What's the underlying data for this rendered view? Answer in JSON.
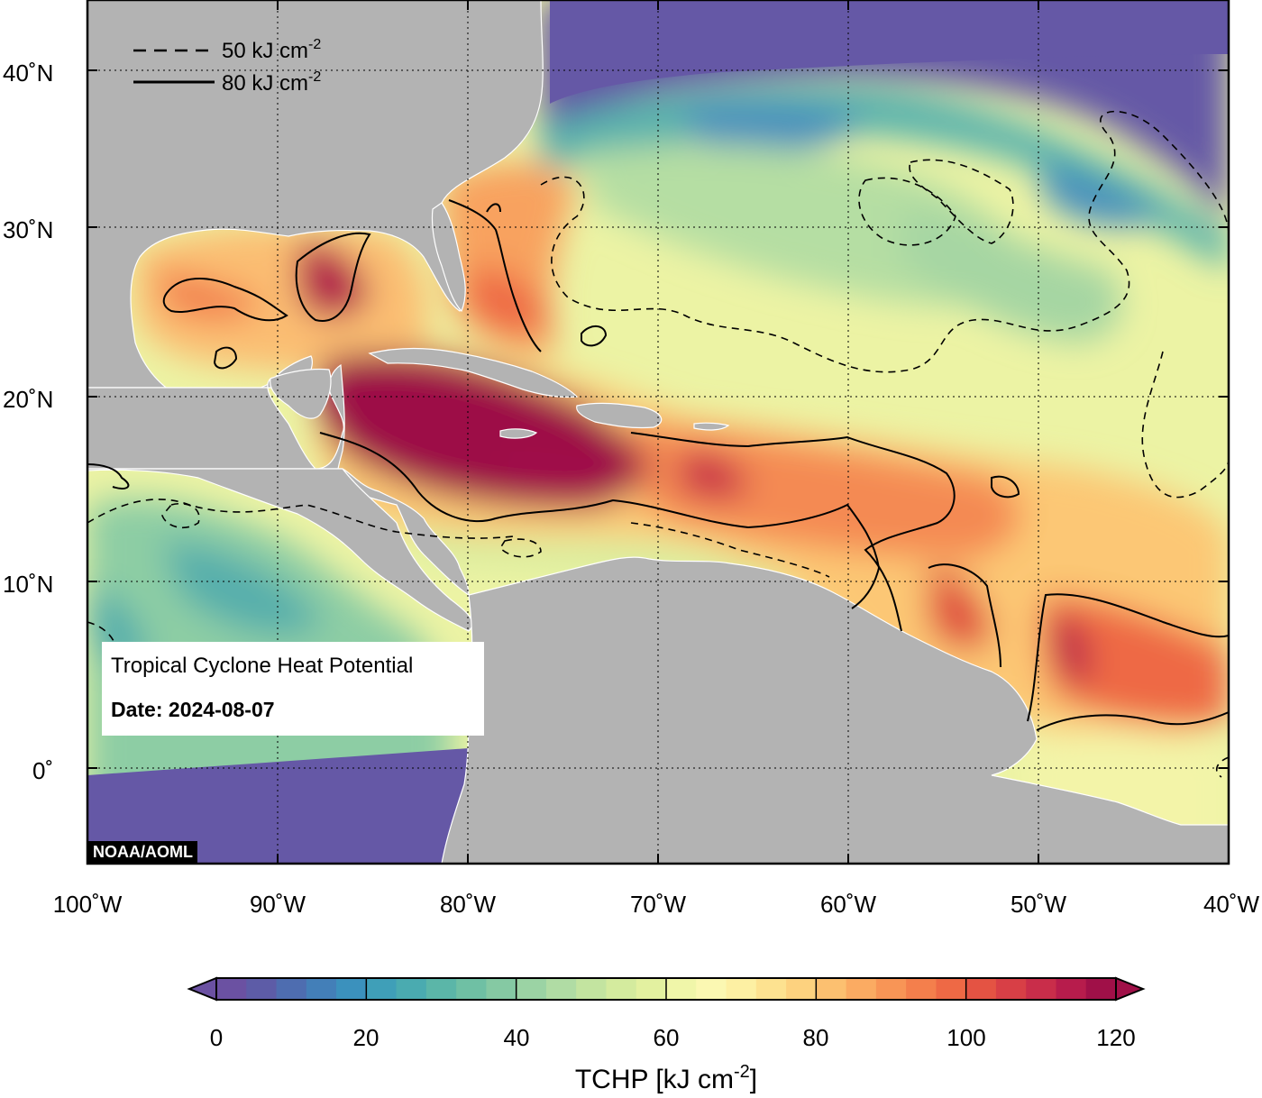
{
  "map": {
    "lon_ticks": [
      "100˚W",
      "90˚W",
      "80˚W",
      "70˚W",
      "60˚W",
      "50˚W",
      "40˚W"
    ],
    "lat_ticks": [
      "40˚N",
      "30˚N",
      "20˚N",
      "10˚N",
      "0˚"
    ],
    "ocean_low_color": "#6558a6",
    "land_color": "#b3b3b3"
  },
  "legend": {
    "dashed_value": "50 kJ cm",
    "solid_value": "80 kJ cm",
    "unit_exponent": "-2"
  },
  "info": {
    "title": "Tropical Cyclone Heat Potential",
    "date": "Date: 2024-08-07"
  },
  "credit": "NOAA/AOML",
  "colorbar": {
    "tick_labels": [
      "0",
      "20",
      "40",
      "60",
      "80",
      "100",
      "120"
    ],
    "title": "TCHP [kJ cm",
    "title_exponent": "-2",
    "title_end": "]",
    "min": 0,
    "max": 120,
    "step": 4,
    "colors": [
      "#6b51a2",
      "#5d5ca7",
      "#4e6db0",
      "#437fb8",
      "#3b91bd",
      "#3f9fb8",
      "#4aabb0",
      "#5bb6a8",
      "#6fc0a4",
      "#85c9a3",
      "#9bd3a4",
      "#b0dca4",
      "#c3e4a0",
      "#d4eb9e",
      "#e3f1a0",
      "#f0f6a9",
      "#fbf8b2",
      "#fdf0a3",
      "#fde290",
      "#fdd27f",
      "#fcc070",
      "#fbab62",
      "#f89556",
      "#f47f4c",
      "#ee6945",
      "#e45343",
      "#d83f46",
      "#c92d4a",
      "#b71c4c",
      "#a01048"
    ]
  }
}
